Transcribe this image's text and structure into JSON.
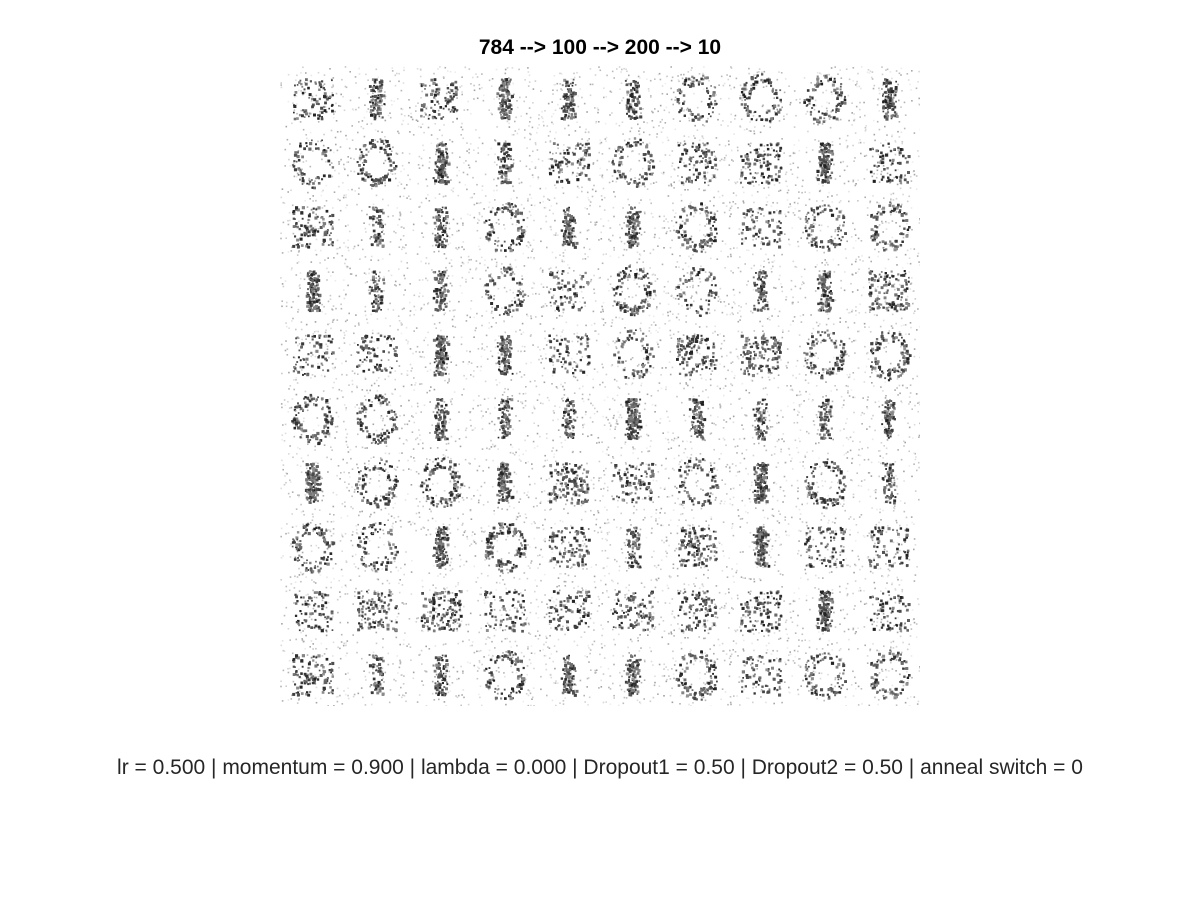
{
  "figure": {
    "title": "784 --> 100 --> 200 --> 10",
    "caption": "lr = 0.500 | momentum = 0.900 | lambda = 0.000 | Dropout1 = 0.50 | Dropout2 = 0.50 | anneal switch = 0"
  },
  "chart_data": {
    "type": "heatmap",
    "title": "784 --> 100 --> 200 --> 10",
    "grid_rows": 10,
    "grid_cols": 10,
    "tile_shape": [
      28,
      28
    ],
    "colormap": "gray (white background, dark strokes)",
    "axes_visible": false,
    "annotation": "lr = 0.500 | momentum = 0.900 | lambda = 0.000 | Dropout1 = 0.50 | Dropout2 = 0.50 | anneal switch = 0"
  }
}
